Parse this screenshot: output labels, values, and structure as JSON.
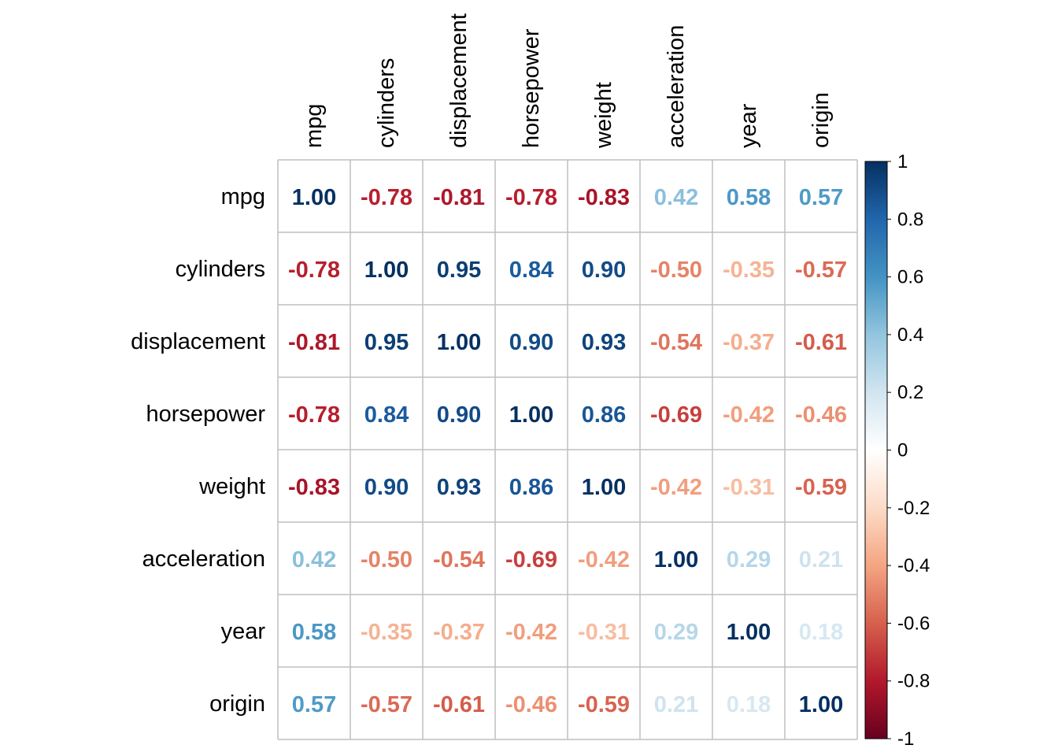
{
  "chart_data": {
    "type": "heatmap",
    "title": "",
    "variables": [
      "mpg",
      "cylinders",
      "displacement",
      "horsepower",
      "weight",
      "acceleration",
      "year",
      "origin"
    ],
    "matrix": [
      [
        1.0,
        -0.78,
        -0.81,
        -0.78,
        -0.83,
        0.42,
        0.58,
        0.57
      ],
      [
        -0.78,
        1.0,
        0.95,
        0.84,
        0.9,
        -0.5,
        -0.35,
        -0.57
      ],
      [
        -0.81,
        0.95,
        1.0,
        0.9,
        0.93,
        -0.54,
        -0.37,
        -0.61
      ],
      [
        -0.78,
        0.84,
        0.9,
        1.0,
        0.86,
        -0.69,
        -0.42,
        -0.46
      ],
      [
        -0.83,
        0.9,
        0.93,
        0.86,
        1.0,
        -0.42,
        -0.31,
        -0.59
      ],
      [
        0.42,
        -0.5,
        -0.54,
        -0.69,
        -0.42,
        1.0,
        0.29,
        0.21
      ],
      [
        0.58,
        -0.35,
        -0.37,
        -0.42,
        -0.31,
        0.29,
        1.0,
        0.18
      ],
      [
        0.57,
        -0.57,
        -0.61,
        -0.46,
        -0.59,
        0.21,
        0.18,
        1.0
      ]
    ],
    "color_scale": {
      "range": [
        -1,
        1
      ],
      "ticks": [
        "1",
        "0.8",
        "0.6",
        "0.4",
        "0.2",
        "0",
        "-0.2",
        "-0.4",
        "-0.6",
        "-0.8",
        "-1"
      ],
      "stops": [
        "#67001F",
        "#B2182B",
        "#D6604D",
        "#F4A582",
        "#FDDBC7",
        "#FFFFFF",
        "#D1E5F0",
        "#92C5DE",
        "#4393C3",
        "#2166AC",
        "#053061"
      ]
    },
    "grid": true,
    "legend_placement": "right"
  }
}
